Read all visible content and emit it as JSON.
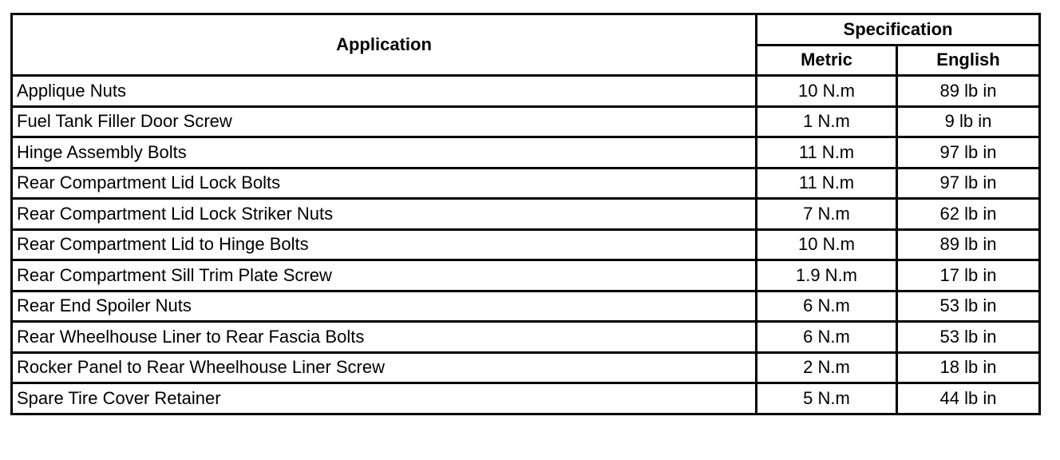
{
  "table": {
    "headers": {
      "application": "Application",
      "specification": "Specification",
      "metric": "Metric",
      "english": "English"
    },
    "rows": [
      {
        "application": "Applique Nuts",
        "metric": "10 N.m",
        "english": "89 lb in"
      },
      {
        "application": "Fuel Tank Filler Door Screw",
        "metric": "1 N.m",
        "english": "9 lb in"
      },
      {
        "application": "Hinge Assembly Bolts",
        "metric": "11 N.m",
        "english": "97 lb in"
      },
      {
        "application": "Rear Compartment Lid Lock Bolts",
        "metric": "11 N.m",
        "english": "97 lb in"
      },
      {
        "application": "Rear Compartment Lid Lock Striker Nuts",
        "metric": "7 N.m",
        "english": "62 lb in"
      },
      {
        "application": "Rear Compartment Lid to Hinge Bolts",
        "metric": "10 N.m",
        "english": "89 lb in"
      },
      {
        "application": "Rear Compartment Sill Trim Plate Screw",
        "metric": "1.9 N.m",
        "english": "17 lb in"
      },
      {
        "application": "Rear End Spoiler Nuts",
        "metric": "6 N.m",
        "english": "53 lb in"
      },
      {
        "application": "Rear Wheelhouse Liner to Rear Fascia Bolts",
        "metric": "6 N.m",
        "english": "53 lb in"
      },
      {
        "application": "Rocker Panel to Rear Wheelhouse Liner Screw",
        "metric": "2 N.m",
        "english": "18 lb in"
      },
      {
        "application": "Spare Tire Cover Retainer",
        "metric": "5 N.m",
        "english": "44 lb in"
      }
    ]
  }
}
